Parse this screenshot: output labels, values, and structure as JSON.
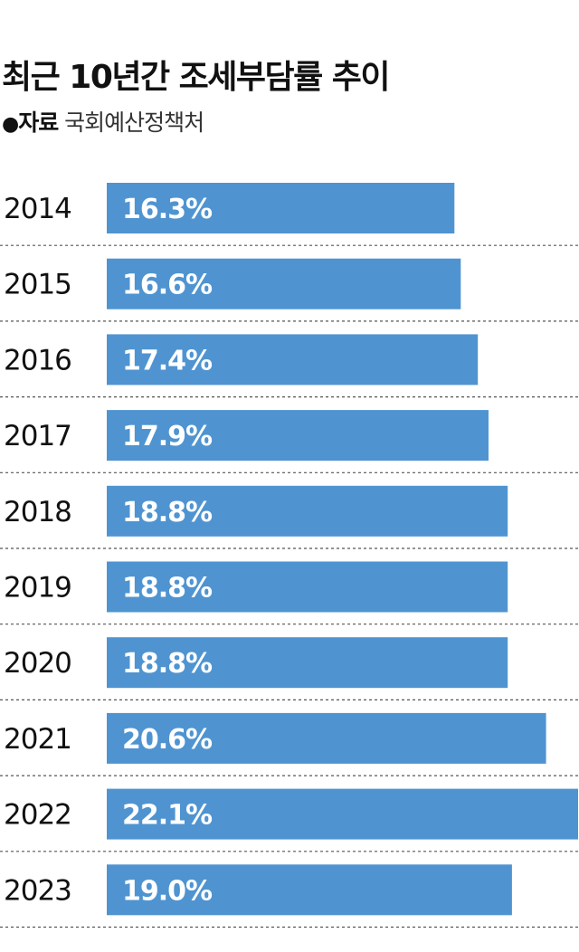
{
  "header": {
    "title": "최근 10년간 조세부담률 추이",
    "source_bullet": "●",
    "source_label": "자료",
    "source_value": "국회예산정책처"
  },
  "chart_data": {
    "type": "bar",
    "orientation": "horizontal",
    "categories": [
      "2014",
      "2015",
      "2016",
      "2017",
      "2018",
      "2019",
      "2020",
      "2021",
      "2022",
      "2023"
    ],
    "values": [
      16.3,
      16.6,
      17.4,
      17.9,
      18.8,
      18.8,
      18.8,
      20.6,
      22.1,
      19.0
    ],
    "data_labels": [
      "16.3%",
      "16.6%",
      "17.4%",
      "17.9%",
      "18.8%",
      "18.8%",
      "18.8%",
      "20.6%",
      "22.1%",
      "19.0%"
    ],
    "unit": "%",
    "bar_color": "#4f94d1",
    "separator_style": "dashed",
    "grid": false,
    "legend": "none"
  }
}
